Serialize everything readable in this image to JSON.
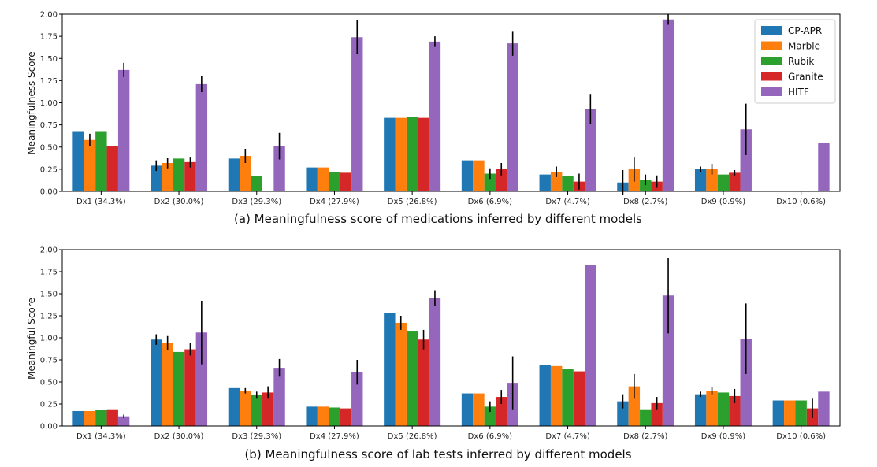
{
  "chart_data": [
    {
      "type": "bar",
      "caption": "(a) Meaningfulness score of medications inferred by different models",
      "ylabel": "Meaningfulness Score",
      "ylim": [
        0,
        2.0
      ],
      "yticks": [
        "0.00",
        "0.25",
        "0.50",
        "0.75",
        "1.00",
        "1.25",
        "1.50",
        "1.75",
        "2.00"
      ],
      "legend_position": "top-right",
      "categories": [
        "Dx1 (34.3%)",
        "Dx2 (30.0%)",
        "Dx3 (29.3%)",
        "Dx4 (27.9%)",
        "Dx5 (26.8%)",
        "Dx6 (6.9%)",
        "Dx7 (4.7%)",
        "Dx8 (2.7%)",
        "Dx9 (0.9%)",
        "Dx10 (0.6%)"
      ],
      "series": [
        {
          "name": "CP-APR",
          "color": "#1f77b4",
          "values": [
            0.68,
            0.29,
            0.37,
            0.27,
            0.83,
            0.35,
            0.19,
            0.1,
            0.25,
            0.0
          ],
          "errors": [
            0,
            0.06,
            0,
            0,
            0,
            0,
            0,
            0.14,
            0.03,
            0
          ]
        },
        {
          "name": "Marble",
          "color": "#ff7f0e",
          "values": [
            0.58,
            0.32,
            0.4,
            0.27,
            0.83,
            0.35,
            0.22,
            0.25,
            0.25,
            0.0
          ],
          "errors": [
            0.07,
            0.06,
            0.08,
            0,
            0,
            0,
            0.06,
            0.14,
            0.06,
            0
          ]
        },
        {
          "name": "Rubik",
          "color": "#2ca02c",
          "values": [
            0.68,
            0.37,
            0.17,
            0.22,
            0.84,
            0.2,
            0.17,
            0.13,
            0.19,
            0.0
          ],
          "errors": [
            0,
            0,
            0,
            0,
            0,
            0.06,
            0,
            0.06,
            0,
            0
          ]
        },
        {
          "name": "Granite",
          "color": "#d62728",
          "values": [
            0.51,
            0.33,
            0.0,
            0.21,
            0.83,
            0.25,
            0.11,
            0.11,
            0.21,
            0.0
          ],
          "errors": [
            0,
            0.06,
            0,
            0,
            0,
            0.07,
            0.09,
            0.07,
            0.03,
            0
          ]
        },
        {
          "name": "HITF",
          "color": "#9467bd",
          "values": [
            1.37,
            1.21,
            0.51,
            1.74,
            1.69,
            1.67,
            0.93,
            1.94,
            0.7,
            0.55
          ],
          "errors": [
            0.08,
            0.09,
            0.15,
            0.19,
            0.06,
            0.14,
            0.17,
            0.06,
            0.29,
            0
          ]
        }
      ]
    },
    {
      "type": "bar",
      "caption": "(b) Meaningfulness score of lab tests inferred by different models",
      "ylabel": "Meaningful Score",
      "ylim": [
        0,
        2.0
      ],
      "yticks": [
        "0.00",
        "0.25",
        "0.50",
        "0.75",
        "1.00",
        "1.25",
        "1.50",
        "1.75",
        "2.00"
      ],
      "categories": [
        "Dx1 (34.3%)",
        "Dx2 (30.0%)",
        "Dx3 (29.3%)",
        "Dx4 (27.9%)",
        "Dx5 (26.8%)",
        "Dx6 (6.9%)",
        "Dx7 (4.7%)",
        "Dx8 (2.7%)",
        "Dx9 (0.9%)",
        "Dx10 (0.6%)"
      ],
      "series": [
        {
          "name": "CP-APR",
          "color": "#1f77b4",
          "values": [
            0.17,
            0.98,
            0.43,
            0.22,
            1.28,
            0.37,
            0.69,
            0.28,
            0.36,
            0.29
          ],
          "errors": [
            0,
            0.06,
            0,
            0,
            0,
            0,
            0,
            0.08,
            0.03,
            0
          ]
        },
        {
          "name": "Marble",
          "color": "#ff7f0e",
          "values": [
            0.17,
            0.94,
            0.4,
            0.22,
            1.17,
            0.37,
            0.68,
            0.45,
            0.4,
            0.29
          ],
          "errors": [
            0,
            0.08,
            0.03,
            0,
            0.08,
            0,
            0,
            0.14,
            0.04,
            0
          ]
        },
        {
          "name": "Rubik",
          "color": "#2ca02c",
          "values": [
            0.18,
            0.84,
            0.35,
            0.21,
            1.08,
            0.22,
            0.65,
            0.19,
            0.38,
            0.29
          ],
          "errors": [
            0,
            0,
            0.04,
            0,
            0,
            0.06,
            0,
            0,
            0,
            0
          ]
        },
        {
          "name": "Granite",
          "color": "#d62728",
          "values": [
            0.19,
            0.87,
            0.38,
            0.2,
            0.98,
            0.33,
            0.62,
            0.26,
            0.34,
            0.2
          ],
          "errors": [
            0,
            0.07,
            0.07,
            0,
            0.11,
            0.08,
            0,
            0.07,
            0.08,
            0.11
          ]
        },
        {
          "name": "HITF",
          "color": "#9467bd",
          "values": [
            0.11,
            1.06,
            0.66,
            0.61,
            1.45,
            0.49,
            1.83,
            1.48,
            0.99,
            0.39
          ],
          "errors": [
            0.02,
            0.36,
            0.1,
            0.14,
            0.09,
            0.3,
            0,
            0.43,
            0.4,
            0
          ]
        }
      ]
    }
  ]
}
